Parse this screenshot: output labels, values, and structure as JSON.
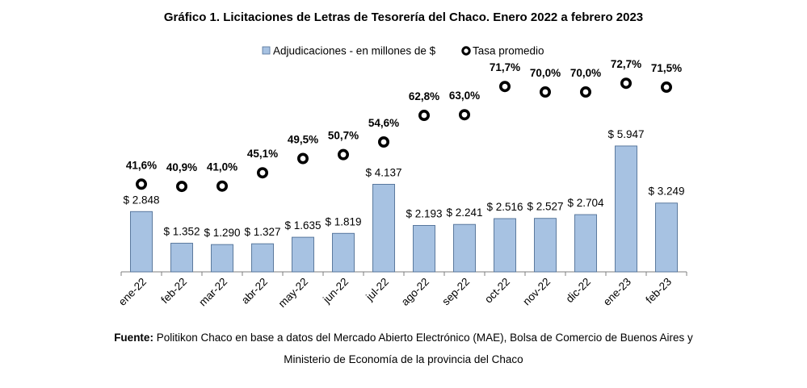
{
  "title": "Gráfico 1. Licitaciones de Letras de Tesorería del Chaco. Enero 2022 a febrero 2023",
  "legend": {
    "bars": "Adjudicaciones - en millones de $",
    "points": "Tasa promedio"
  },
  "source": {
    "label": "Fuente:",
    "line1": "Politikon Chaco en base a datos del Mercado Abierto Electrónico (MAE), Bolsa de Comercio de Buenos Aires y",
    "line2": "Ministerio de Economía de la provincia del Chaco"
  },
  "colors": {
    "bar_fill": "#a7c2e2",
    "bar_stroke": "#4f6f96",
    "point": "#000000"
  },
  "chart_data": {
    "type": "bar",
    "categories": [
      "ene-22",
      "feb-22",
      "mar-22",
      "abr-22",
      "may-22",
      "jun-22",
      "jul-22",
      "ago-22",
      "sep-22",
      "oct-22",
      "nov-22",
      "dic-22",
      "ene-23",
      "feb-23"
    ],
    "series": [
      {
        "name": "Adjudicaciones - en millones de $",
        "type": "bar",
        "values": [
          2848,
          1352,
          1290,
          1327,
          1635,
          1819,
          4137,
          2193,
          2241,
          2516,
          2527,
          2704,
          5947,
          3249
        ],
        "labels": [
          "$ 2.848",
          "$ 1.352",
          "$ 1.290",
          "$ 1.327",
          "$ 1.635",
          "$ 1.819",
          "$ 4.137",
          "$ 2.193",
          "$ 2.241",
          "$ 2.516",
          "$ 2.527",
          "$ 2.704",
          "$ 5.947",
          "$ 3.249"
        ]
      },
      {
        "name": "Tasa promedio",
        "type": "scatter",
        "values": [
          41.6,
          40.9,
          41.0,
          45.1,
          49.5,
          50.7,
          54.6,
          62.8,
          63.0,
          71.7,
          70.0,
          70.0,
          72.7,
          71.5
        ],
        "labels": [
          "41,6%",
          "40,9%",
          "41,0%",
          "45,1%",
          "49,5%",
          "50,7%",
          "54,6%",
          "62,8%",
          "63,0%",
          "71,7%",
          "70,0%",
          "70,0%",
          "72,7%",
          "71,5%"
        ]
      }
    ],
    "legend_position": "top",
    "grid": false
  }
}
